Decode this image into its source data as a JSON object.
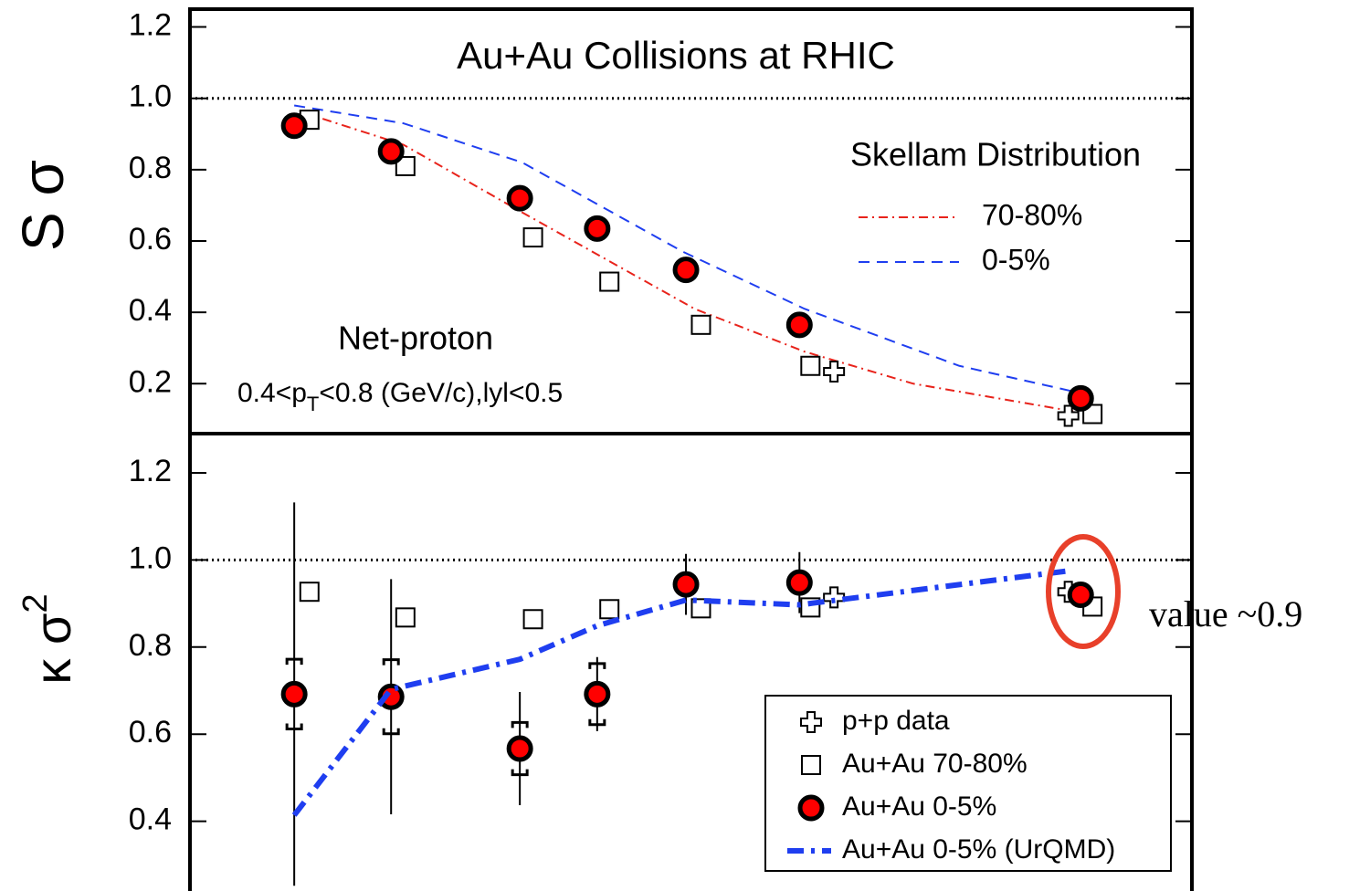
{
  "chart_data": [
    {
      "type": "scatter",
      "title": "Au+Au Collisions at RHIC",
      "ylabel": [
        "S σ"
      ],
      "log_x": true,
      "xlim": [
        5,
        317
      ],
      "ylim": [
        0.06,
        1.25
      ],
      "yticks": [
        0.2,
        0.4,
        0.6,
        0.8,
        {
          "value": 1,
          "label": "1.0"
        },
        1.2
      ],
      "reference_line": 1,
      "legend_title": "Skellam Distribution",
      "label": "Net-proton",
      "cuts": [
        "0.4<p",
        "T",
        "<0.8 (GeV/c),lyl<0.5"
      ],
      "series": [
        {
          "name": "70-80%",
          "color": "#e8231b",
          "style": "dashdot",
          "x": [
            8.0,
            12.1,
            19.8,
            40.4,
            63.7,
            100,
            198
          ],
          "values": [
            0.96,
            0.87,
            0.68,
            0.41,
            0.29,
            0.2,
            0.12
          ]
        },
        {
          "name": "0-5%",
          "color": "#1f3ef0",
          "style": "dashed",
          "x": [
            7.7,
            12.1,
            19.8,
            38.5,
            63.7,
            121,
            198
          ],
          "values": [
            0.98,
            0.93,
            0.82,
            0.57,
            0.41,
            0.25,
            0.175
          ]
        },
        {
          "color": "#000000",
          "marker": "plus",
          "x": [
            72,
            190
          ],
          "values": [
            0.234,
            0.11
          ]
        },
        {
          "color": "#000000",
          "marker": "square",
          "x": [
            8.2,
            12.2,
            20.7,
            28.4,
            41.5,
            65.3,
            210
          ],
          "values": [
            0.94,
            0.81,
            0.61,
            0.486,
            0.365,
            0.25,
            0.115
          ]
        },
        {
          "color": "#ff0000",
          "marker": "circle",
          "x": [
            7.7,
            11.5,
            19.6,
            27,
            39,
            62.4,
            200
          ],
          "values": [
            0.923,
            0.851,
            0.72,
            0.635,
            0.519,
            0.365,
            0.159
          ]
        }
      ]
    },
    {
      "type": "scatter",
      "ylabel": [
        "κ σ",
        "2"
      ],
      "log_x": true,
      "xlim": [
        5,
        317
      ],
      "ylim": [
        0.24,
        1.29
      ],
      "yticks": [
        0.4,
        0.6,
        0.8,
        {
          "value": 1,
          "label": "1.0"
        },
        1.2
      ],
      "reference_line": 1,
      "annotation": "value ~0.9",
      "series": [
        {
          "name": "p+p data",
          "color": "#000000",
          "marker": "plus",
          "x": [
            72,
            190
          ],
          "values": [
            0.914,
            0.927
          ]
        },
        {
          "name": "Au+Au 70-80%",
          "color": "#000000",
          "marker": "square",
          "x": [
            8.2,
            12.2,
            20.7,
            28.4,
            41.5,
            65.3,
            210
          ],
          "values": [
            0.927,
            0.868,
            0.864,
            0.887,
            0.889,
            0.891,
            0.893
          ]
        },
        {
          "name": "Au+Au 0-5%",
          "color": "#ff0000",
          "marker": "circle",
          "x": [
            7.7,
            11.5,
            19.6,
            27,
            39,
            62.4,
            200
          ],
          "values": [
            0.692,
            0.686,
            0.567,
            0.692,
            0.944,
            0.948,
            0.92
          ],
          "errors": [
            0.44,
            0.27,
            0.13,
            0.085,
            0.07,
            0.07,
            0.02
          ],
          "sys_errors": [
            0.08,
            0.085,
            0.06,
            0.07,
            0.01,
            0.01,
            0.01
          ]
        },
        {
          "name": "Au+Au 0-5% (UrQMD)",
          "color": "#1f3ef0",
          "style": "dashdot-thick",
          "x": [
            7.7,
            11.5,
            19.6,
            27,
            39,
            62.4,
            190
          ],
          "values": [
            0.414,
            0.703,
            0.772,
            0.849,
            0.908,
            0.897,
            0.975
          ]
        }
      ]
    }
  ]
}
